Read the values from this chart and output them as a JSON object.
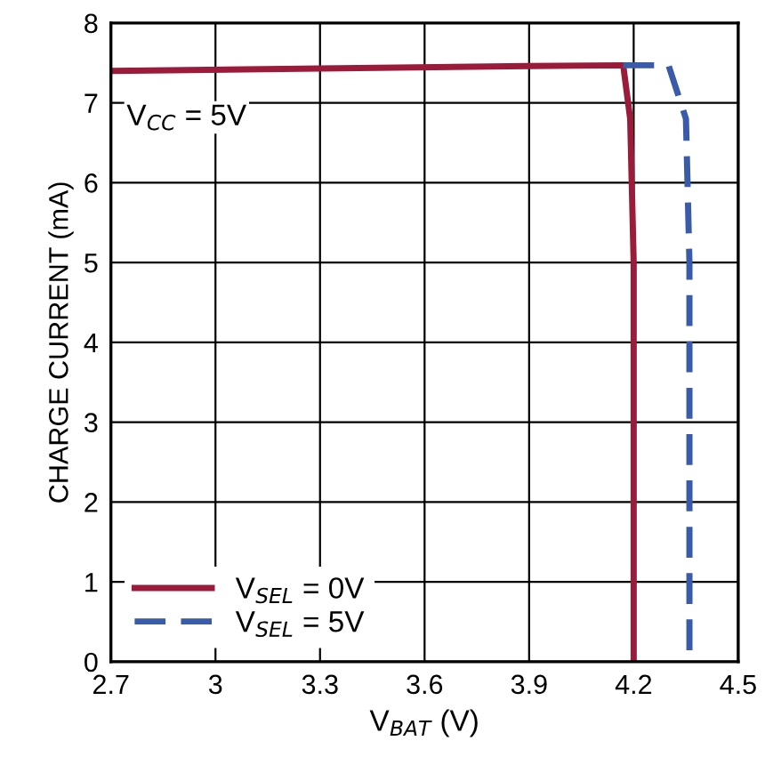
{
  "chart_data": {
    "type": "line",
    "xlabel": "V$_{BAT}$ (V)",
    "ylabel": "CHARGE CURRENT (mA)",
    "annotations": [
      "V$_{CC}$ = 5V"
    ],
    "xlim": [
      2.7,
      4.5
    ],
    "xticks": [
      2.7,
      3,
      3.3,
      3.6,
      3.9,
      4.2,
      4.5
    ],
    "ylim": [
      0,
      8
    ],
    "yticks": [
      0,
      1,
      2,
      3,
      4,
      5,
      6,
      7,
      8
    ],
    "grid": true,
    "legend": "bottom left",
    "series": [
      {
        "name": "V$_{SEL}$ = 0V",
        "color": "#9b1b3a",
        "line_style": "solid",
        "x": [
          2.7,
          3.3,
          3.9,
          4.17,
          4.19,
          4.2,
          4.2
        ],
        "values": [
          7.4,
          7.43,
          7.46,
          7.47,
          6.8,
          5.0,
          0
        ]
      },
      {
        "name": "V$_{SEL}$ = 5V",
        "color": "#3a5ba8",
        "line_style": "dashed",
        "x": [
          4.17,
          4.3,
          4.35,
          4.36,
          4.36
        ],
        "values": [
          7.47,
          7.47,
          6.8,
          5.0,
          0
        ]
      }
    ]
  }
}
